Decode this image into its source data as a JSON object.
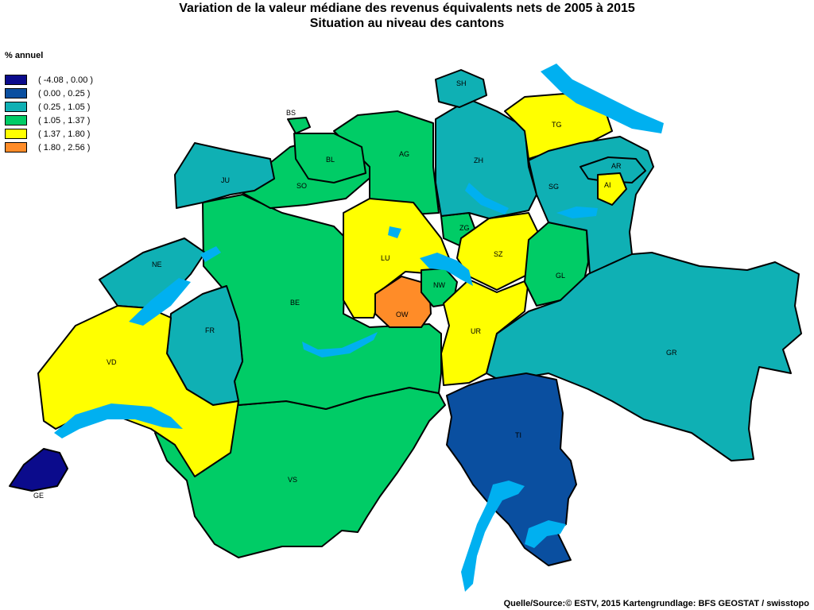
{
  "title_line1": "Variation de la valeur médiane des revenus équivalents nets de 2005 à 2015",
  "title_line2": "Situation au niveau des cantons",
  "unit_label": "% annuel",
  "legend": [
    {
      "label": "( -4.08 , 0.00 )",
      "color": "#0b0b8c"
    },
    {
      "label": "( 0.00 , 0.25 )",
      "color": "#0a4fa0"
    },
    {
      "label": "( 0.25 , 1.05 )",
      "color": "#0fb0b4"
    },
    {
      "label": "( 1.05 , 1.37 )",
      "color": "#00cc66"
    },
    {
      "label": "( 1.37 , 1.80 )",
      "color": "#ffff00"
    },
    {
      "label": "( 1.80 , 2.56 )",
      "color": "#ff8c28"
    }
  ],
  "lake_color": "#00b0f0",
  "cantons": {
    "SH": "SH",
    "BS": "BS",
    "BL": "BL",
    "AG": "AG",
    "ZH": "ZH",
    "TG": "TG",
    "AR": "AR",
    "AI": "AI",
    "SG": "SG",
    "JU": "JU",
    "SO": "SO",
    "NE": "NE",
    "BE": "BE",
    "FR": "FR",
    "VD": "VD",
    "GE": "GE",
    "VS": "VS",
    "LU": "LU",
    "ZG": "ZG",
    "SZ": "SZ",
    "NW": "NW",
    "OW": "OW",
    "UR": "UR",
    "GL": "GL",
    "GR": "GR",
    "TI": "TI"
  },
  "source": "Quelle/Source:© ESTV, 2015 Kartengrundlage: BFS GEOSTAT / swisstopo"
}
